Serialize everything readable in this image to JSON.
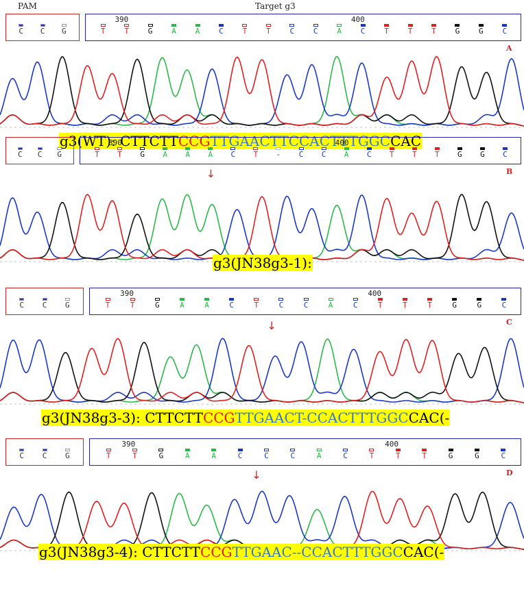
{
  "header": {
    "pam_label": "PAM",
    "target_label": "Target g3"
  },
  "colors": {
    "A": "#2db84a",
    "C": "#1a38c8",
    "G": "#111111",
    "T": "#e02020",
    "pam_box": "#cc2222",
    "target_box": "#2222aa",
    "highlight": "#ffff00",
    "seq_red": "#e01818",
    "seq_blue": "#3a78c2"
  },
  "panels": [
    {
      "id": "A",
      "label": "A",
      "pam_bases": [
        "C",
        "C",
        "G"
      ],
      "target_bases": [
        "T",
        "T",
        "G",
        "A",
        "A",
        "C",
        "T",
        "T",
        "C",
        "C",
        "A",
        "C",
        "T",
        "T",
        "T",
        "G",
        "G",
        "C"
      ],
      "pos_390": "390",
      "pos_400": "400",
      "deletion_index": null,
      "sequence": {
        "prefix": "g3(WT): ",
        "part1": "CTTCTT",
        "part2": "CCG",
        "part3": "TTGAACTTCCACTTTGGC",
        "part4": "CAC"
      }
    },
    {
      "id": "B",
      "label": "B",
      "pam_bases": [
        "C",
        "C",
        "G"
      ],
      "target_bases": [
        "T",
        "T",
        "G",
        "A",
        "A",
        "A",
        "C",
        "T",
        "-",
        "C",
        "C",
        "A",
        "C",
        "T",
        "T",
        "T",
        "G",
        "G",
        "C"
      ],
      "pos_390": "390",
      "pos_400": "400",
      "deletion_index": 5,
      "sequence": {
        "prefix": "g3(JN38g3-1):",
        "part1": "",
        "part2": "",
        "part3": "",
        "part4": ""
      }
    },
    {
      "id": "C",
      "label": "C",
      "pam_bases": [
        "C",
        "C",
        "G"
      ],
      "target_bases": [
        "T",
        "T",
        "G",
        "A",
        "A",
        "C",
        "T",
        "C",
        "C",
        "A",
        "C",
        "T",
        "T",
        "T",
        "G",
        "G",
        "C"
      ],
      "pos_390": "390",
      "pos_400": "400",
      "deletion_index": 6,
      "sequence": {
        "prefix": "g3(JN38g3-3): ",
        "part1": "CTTCTT",
        "part2": "CCG",
        "part3": "TTGAACT-CCACTTTGGC",
        "part4": "CAC(-"
      }
    },
    {
      "id": "D",
      "label": "D",
      "pam_bases": [
        "C",
        "C",
        "G"
      ],
      "target_bases": [
        "T",
        "T",
        "G",
        "A",
        "A",
        "C",
        "C",
        "C",
        "A",
        "C",
        "T",
        "T",
        "T",
        "G",
        "G",
        "C"
      ],
      "pos_390": "390",
      "pos_400": "400",
      "deletion_index": 5,
      "sequence": {
        "prefix": "g3(JN38g3-4): ",
        "part1": "CTTCTT",
        "part2": "CCG",
        "part3": "TTGAAC--CCACTTTGGC",
        "part4": "CAC(-"
      }
    }
  ]
}
